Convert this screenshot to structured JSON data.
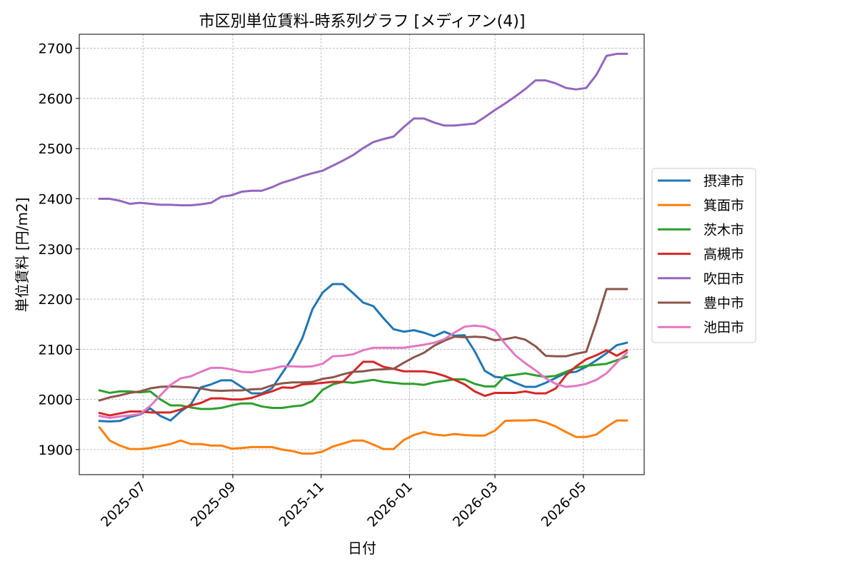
{
  "chart_data": {
    "type": "line",
    "title": "市区別単位賃料-時系列グラフ [メディアン(4)]",
    "xlabel": "日付",
    "ylabel": "単位賃料 [円/m2]",
    "xlim": [
      "2025-05-18",
      "2026-06-12"
    ],
    "ylim": [
      1850,
      2728
    ],
    "x_ticks": [
      {
        "date": "2025-07-01",
        "label": "2025-07"
      },
      {
        "date": "2025-09-01",
        "label": "2025-09"
      },
      {
        "date": "2025-11-01",
        "label": "2025-11"
      },
      {
        "date": "2026-01-01",
        "label": "2026-01"
      },
      {
        "date": "2026-03-01",
        "label": "2026-03"
      },
      {
        "date": "2026-05-01",
        "label": "2026-05"
      }
    ],
    "y_ticks": [
      1900,
      2000,
      2100,
      2200,
      2300,
      2400,
      2500,
      2600,
      2700
    ],
    "grid": true,
    "legend_position": "right",
    "x": [
      "2025-06-01",
      "2025-06-08",
      "2025-06-15",
      "2025-06-22",
      "2025-06-29",
      "2025-07-06",
      "2025-07-13",
      "2025-07-20",
      "2025-07-27",
      "2025-08-03",
      "2025-08-10",
      "2025-08-17",
      "2025-08-24",
      "2025-08-31",
      "2025-09-07",
      "2025-09-14",
      "2025-09-21",
      "2025-09-28",
      "2025-10-05",
      "2025-10-12",
      "2025-10-19",
      "2025-10-26",
      "2025-11-02",
      "2025-11-09",
      "2025-11-16",
      "2025-11-23",
      "2025-11-30",
      "2025-12-07",
      "2025-12-14",
      "2025-12-21",
      "2025-12-28",
      "2026-01-04",
      "2026-01-11",
      "2026-01-18",
      "2026-01-25",
      "2026-02-01",
      "2026-02-08",
      "2026-02-15",
      "2026-02-22",
      "2026-03-01",
      "2026-03-08",
      "2026-03-15",
      "2026-03-22",
      "2026-03-29",
      "2026-04-05",
      "2026-04-12",
      "2026-04-19",
      "2026-04-26",
      "2026-05-03",
      "2026-05-10",
      "2026-05-17",
      "2026-05-24",
      "2026-05-31"
    ],
    "series": [
      {
        "name": "摂津市",
        "color": "#1f77b4",
        "values": [
          1957,
          1956,
          1957,
          1965,
          1970,
          1982,
          1967,
          1958,
          1976,
          1990,
          2024,
          2030,
          2038,
          2038,
          2025,
          2012,
          2012,
          2022,
          2052,
          2082,
          2122,
          2180,
          2213,
          2230,
          2230,
          2212,
          2193,
          2186,
          2162,
          2140,
          2135,
          2138,
          2133,
          2126,
          2135,
          2127,
          2128,
          2096,
          2057,
          2045,
          2043,
          2033,
          2025,
          2025,
          2033,
          2043,
          2053,
          2055,
          2065,
          2078,
          2092,
          2108,
          2113
        ]
      },
      {
        "name": "箕面市",
        "color": "#ff7f0e",
        "values": [
          1944,
          1918,
          1908,
          1901,
          1901,
          1903,
          1907,
          1911,
          1918,
          1911,
          1911,
          1908,
          1908,
          1902,
          1903,
          1905,
          1905,
          1905,
          1900,
          1897,
          1892,
          1892,
          1896,
          1906,
          1912,
          1918,
          1918,
          1910,
          1901,
          1901,
          1919,
          1929,
          1935,
          1930,
          1928,
          1931,
          1929,
          1928,
          1928,
          1938,
          1957,
          1958,
          1958,
          1959,
          1954,
          1946,
          1935,
          1925,
          1925,
          1930,
          1945,
          1958,
          1958
        ]
      },
      {
        "name": "茨木市",
        "color": "#2ca02c",
        "values": [
          2018,
          2013,
          2016,
          2016,
          2014,
          2016,
          2000,
          1988,
          1988,
          1984,
          1981,
          1981,
          1983,
          1988,
          1992,
          1992,
          1986,
          1983,
          1983,
          1986,
          1988,
          1997,
          2019,
          2030,
          2035,
          2033,
          2036,
          2039,
          2035,
          2033,
          2031,
          2031,
          2029,
          2034,
          2037,
          2040,
          2040,
          2031,
          2026,
          2026,
          2047,
          2049,
          2052,
          2048,
          2045,
          2047,
          2055,
          2063,
          2067,
          2069,
          2071,
          2078,
          2085
        ]
      },
      {
        "name": "高槻市",
        "color": "#d62728",
        "values": [
          1973,
          1968,
          1972,
          1976,
          1976,
          1974,
          1974,
          1974,
          1980,
          1988,
          1993,
          2002,
          2002,
          2000,
          2000,
          2003,
          2010,
          2016,
          2024,
          2023,
          2030,
          2031,
          2033,
          2035,
          2035,
          2055,
          2075,
          2075,
          2065,
          2061,
          2056,
          2056,
          2056,
          2053,
          2047,
          2039,
          2030,
          2016,
          2007,
          2013,
          2013,
          2013,
          2016,
          2012,
          2012,
          2022,
          2048,
          2066,
          2080,
          2088,
          2098,
          2087,
          2098
        ]
      },
      {
        "name": "吹田市",
        "color": "#9467bd",
        "values": [
          2400,
          2400,
          2396,
          2390,
          2392,
          2390,
          2388,
          2388,
          2387,
          2387,
          2389,
          2392,
          2404,
          2407,
          2414,
          2416,
          2416,
          2423,
          2432,
          2438,
          2445,
          2451,
          2456,
          2466,
          2476,
          2487,
          2501,
          2513,
          2519,
          2524,
          2543,
          2560,
          2560,
          2552,
          2546,
          2546,
          2548,
          2550,
          2563,
          2577,
          2590,
          2604,
          2619,
          2636,
          2636,
          2630,
          2621,
          2618,
          2621,
          2647,
          2685,
          2689,
          2689
        ]
      },
      {
        "name": "豊中市",
        "color": "#8c564b",
        "values": [
          1998,
          2004,
          2008,
          2013,
          2016,
          2022,
          2025,
          2026,
          2025,
          2024,
          2022,
          2018,
          2017,
          2018,
          2018,
          2020,
          2021,
          2028,
          2032,
          2034,
          2034,
          2035,
          2041,
          2044,
          2050,
          2055,
          2056,
          2059,
          2060,
          2061,
          2073,
          2084,
          2093,
          2107,
          2117,
          2125,
          2124,
          2125,
          2124,
          2118,
          2120,
          2124,
          2119,
          2106,
          2087,
          2086,
          2086,
          2091,
          2095,
          2154,
          2220,
          2220,
          2220
        ]
      },
      {
        "name": "池田市",
        "color": "#e377c2",
        "values": [
          1967,
          1963,
          1966,
          1968,
          1971,
          1987,
          2008,
          2029,
          2042,
          2046,
          2055,
          2063,
          2063,
          2060,
          2055,
          2054,
          2058,
          2061,
          2066,
          2066,
          2065,
          2066,
          2071,
          2086,
          2087,
          2090,
          2098,
          2103,
          2103,
          2103,
          2103,
          2106,
          2109,
          2113,
          2120,
          2133,
          2145,
          2147,
          2145,
          2137,
          2111,
          2088,
          2072,
          2058,
          2042,
          2031,
          2025,
          2027,
          2031,
          2039,
          2052,
          2073,
          2093
        ]
      }
    ]
  }
}
